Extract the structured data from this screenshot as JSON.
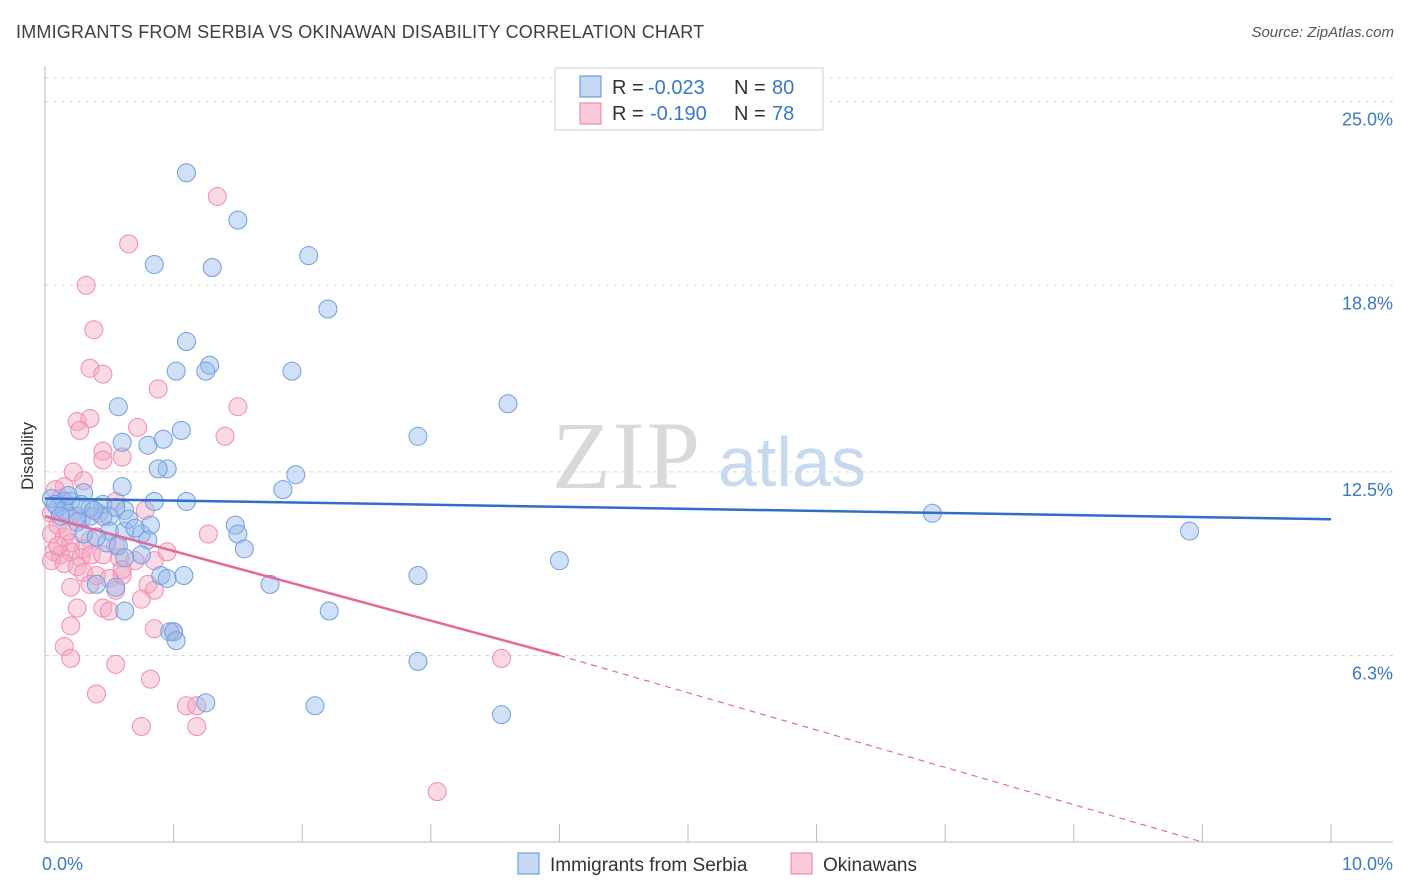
{
  "header": {
    "title": "IMMIGRANTS FROM SERBIA VS OKINAWAN DISABILITY CORRELATION CHART",
    "source": "Source: ZipAtlas.com"
  },
  "watermark": {
    "zip": "ZIP",
    "atlas": "atlas"
  },
  "legend": {
    "r_label": "R =",
    "n_label": "N =",
    "rows": [
      {
        "r": "-0.023",
        "n": "80",
        "color": "#6fa0e0"
      },
      {
        "r": "-0.190",
        "n": "78",
        "color": "#f08caf"
      }
    ]
  },
  "chart_data": {
    "type": "scatter",
    "title": "IMMIGRANTS FROM SERBIA VS OKINAWAN DISABILITY CORRELATION CHART",
    "xlabel": "",
    "ylabel": "Disability",
    "xlim": [
      0,
      10
    ],
    "ylim": [
      0,
      25.8
    ],
    "x_tick_labels": [
      "0.0%",
      "10.0%"
    ],
    "y_ticks": [
      6.3,
      12.5,
      18.8,
      25.0
    ],
    "y_tick_labels": [
      "6.3%",
      "12.5%",
      "18.8%",
      "25.0%"
    ],
    "grid": true,
    "legend_position": "top-center",
    "series": [
      {
        "name": "Immigrants from Serbia",
        "color": "#6fa0e0",
        "line_color": "#2f6fca",
        "trend": {
          "x0": 0,
          "y0": 11.6,
          "x1": 10,
          "y1": 10.9
        },
        "points": [
          [
            1.1,
            22.6
          ],
          [
            1.5,
            21.0
          ],
          [
            0.85,
            19.5
          ],
          [
            1.3,
            19.4
          ],
          [
            2.05,
            19.8
          ],
          [
            2.2,
            18.0
          ],
          [
            1.1,
            16.9
          ],
          [
            1.28,
            16.1
          ],
          [
            1.02,
            15.9
          ],
          [
            1.25,
            15.9
          ],
          [
            1.92,
            15.9
          ],
          [
            0.57,
            14.7
          ],
          [
            3.6,
            14.8
          ],
          [
            0.8,
            13.4
          ],
          [
            1.06,
            13.9
          ],
          [
            0.92,
            13.6
          ],
          [
            0.6,
            13.5
          ],
          [
            0.95,
            12.6
          ],
          [
            0.88,
            12.6
          ],
          [
            2.9,
            13.7
          ],
          [
            1.95,
            12.4
          ],
          [
            0.6,
            12.0
          ],
          [
            1.85,
            11.9
          ],
          [
            0.3,
            11.8
          ],
          [
            0.45,
            11.4
          ],
          [
            0.62,
            11.2
          ],
          [
            0.85,
            11.5
          ],
          [
            1.1,
            11.5
          ],
          [
            0.15,
            11.5
          ],
          [
            0.1,
            11.3
          ],
          [
            0.35,
            11.0
          ],
          [
            0.5,
            11.0
          ],
          [
            0.25,
            10.8
          ],
          [
            0.15,
            11.2
          ],
          [
            0.3,
            10.4
          ],
          [
            0.5,
            10.5
          ],
          [
            0.48,
            10.1
          ],
          [
            0.62,
            10.5
          ],
          [
            0.75,
            10.4
          ],
          [
            0.82,
            10.7
          ],
          [
            1.48,
            10.7
          ],
          [
            0.8,
            10.2
          ],
          [
            1.5,
            10.4
          ],
          [
            0.4,
            10.3
          ],
          [
            0.57,
            10.0
          ],
          [
            0.75,
            9.7
          ],
          [
            1.55,
            9.9
          ],
          [
            0.62,
            9.6
          ],
          [
            0.9,
            9.0
          ],
          [
            0.95,
            8.9
          ],
          [
            1.08,
            9.0
          ],
          [
            2.9,
            9.0
          ],
          [
            4.0,
            9.5
          ],
          [
            0.55,
            8.6
          ],
          [
            0.4,
            8.7
          ],
          [
            1.75,
            8.7
          ],
          [
            0.62,
            7.8
          ],
          [
            2.21,
            7.8
          ],
          [
            0.97,
            7.1
          ],
          [
            1.0,
            7.1
          ],
          [
            1.02,
            6.8
          ],
          [
            2.9,
            6.1
          ],
          [
            1.25,
            4.7
          ],
          [
            2.1,
            4.6
          ],
          [
            3.55,
            4.3
          ],
          [
            6.9,
            11.1
          ],
          [
            8.9,
            10.5
          ],
          [
            0.45,
            11.0
          ],
          [
            0.2,
            11.5
          ],
          [
            0.25,
            11.0
          ],
          [
            0.35,
            11.3
          ],
          [
            0.05,
            11.6
          ],
          [
            0.08,
            11.4
          ],
          [
            0.12,
            11.0
          ],
          [
            0.18,
            11.7
          ],
          [
            0.28,
            11.4
          ],
          [
            0.38,
            11.2
          ],
          [
            0.55,
            11.3
          ],
          [
            0.65,
            10.9
          ],
          [
            0.7,
            10.6
          ]
        ]
      },
      {
        "name": "Okinawans",
        "color": "#f08caf",
        "line_color": "#e4699a",
        "trend": {
          "x0": 0,
          "y0": 11.0,
          "x1": 4.0,
          "y1": 6.3,
          "dash_x1": 9.0,
          "dash_y1": 0
        },
        "points": [
          [
            1.34,
            21.8
          ],
          [
            0.65,
            20.2
          ],
          [
            0.32,
            18.8
          ],
          [
            0.38,
            17.3
          ],
          [
            0.35,
            16.0
          ],
          [
            0.45,
            15.8
          ],
          [
            0.88,
            15.3
          ],
          [
            1.5,
            14.7
          ],
          [
            0.25,
            14.2
          ],
          [
            0.35,
            14.3
          ],
          [
            0.72,
            14.0
          ],
          [
            0.27,
            13.9
          ],
          [
            1.4,
            13.7
          ],
          [
            0.45,
            13.2
          ],
          [
            0.6,
            13.0
          ],
          [
            0.45,
            12.9
          ],
          [
            0.22,
            12.5
          ],
          [
            0.3,
            12.2
          ],
          [
            0.15,
            12.0
          ],
          [
            0.08,
            11.9
          ],
          [
            0.12,
            11.6
          ],
          [
            0.55,
            11.5
          ],
          [
            0.78,
            11.2
          ],
          [
            0.05,
            11.1
          ],
          [
            0.2,
            11.0
          ],
          [
            0.28,
            10.9
          ],
          [
            0.42,
            11.1
          ],
          [
            0.1,
            10.7
          ],
          [
            0.05,
            10.4
          ],
          [
            0.15,
            10.3
          ],
          [
            1.27,
            10.4
          ],
          [
            0.2,
            10.1
          ],
          [
            0.35,
            10.2
          ],
          [
            0.55,
            10.0
          ],
          [
            0.3,
            9.9
          ],
          [
            0.07,
            9.8
          ],
          [
            0.12,
            9.7
          ],
          [
            0.2,
            9.8
          ],
          [
            0.28,
            9.6
          ],
          [
            0.36,
            9.7
          ],
          [
            0.45,
            9.7
          ],
          [
            0.58,
            9.6
          ],
          [
            0.85,
            9.5
          ],
          [
            0.95,
            9.8
          ],
          [
            0.05,
            9.5
          ],
          [
            0.15,
            9.4
          ],
          [
            0.25,
            9.3
          ],
          [
            0.3,
            9.1
          ],
          [
            0.6,
            9.0
          ],
          [
            0.4,
            9.0
          ],
          [
            0.5,
            8.9
          ],
          [
            0.2,
            8.6
          ],
          [
            0.35,
            8.7
          ],
          [
            0.55,
            8.5
          ],
          [
            0.8,
            8.7
          ],
          [
            0.85,
            8.5
          ],
          [
            0.25,
            7.9
          ],
          [
            0.45,
            7.9
          ],
          [
            0.5,
            7.8
          ],
          [
            0.2,
            7.3
          ],
          [
            0.85,
            7.2
          ],
          [
            1.0,
            7.1
          ],
          [
            0.15,
            6.6
          ],
          [
            0.2,
            6.2
          ],
          [
            0.55,
            6.0
          ],
          [
            3.55,
            6.2
          ],
          [
            0.82,
            5.5
          ],
          [
            0.4,
            5.0
          ],
          [
            1.1,
            4.6
          ],
          [
            1.18,
            4.6
          ],
          [
            0.75,
            3.9
          ],
          [
            1.18,
            3.9
          ],
          [
            3.05,
            1.7
          ],
          [
            0.6,
            9.2
          ],
          [
            0.7,
            9.5
          ],
          [
            0.75,
            8.2
          ],
          [
            0.1,
            10.0
          ],
          [
            0.18,
            10.5
          ]
        ]
      }
    ]
  }
}
